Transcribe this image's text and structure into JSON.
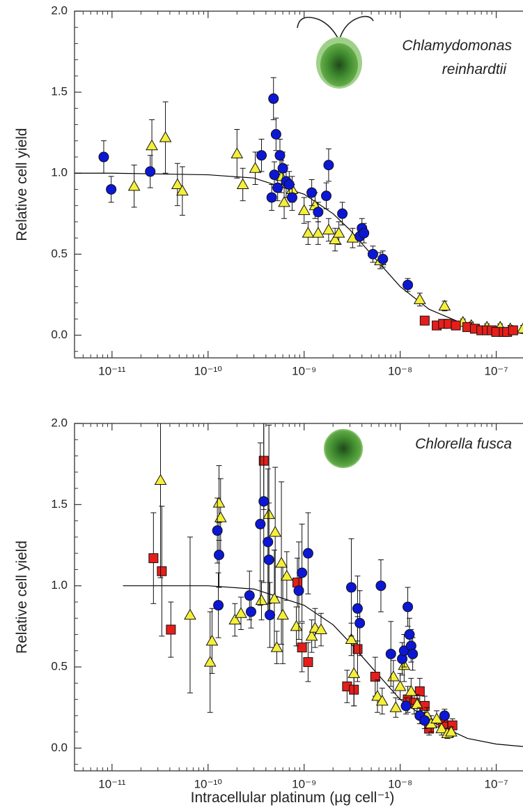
{
  "chart_data": [
    {
      "type": "scatter",
      "ylabel": "Relative cell yield",
      "log_x": true,
      "minor_ticks": true,
      "annotations": [
        "Chlamydomonas",
        "reinhardtii"
      ],
      "xlim": [
        4.07e-12,
        1.9e-07
      ],
      "ylim": [
        -0.14,
        2.0
      ],
      "xticks": [
        {
          "value": 1e-11,
          "label": "10⁻¹¹"
        },
        {
          "value": 1e-10,
          "label": "10⁻¹⁰"
        },
        {
          "value": 1e-09,
          "label": "10⁻⁹"
        },
        {
          "value": 1e-08,
          "label": "10⁻⁸"
        },
        {
          "value": 1e-07,
          "label": "10⁻⁷"
        }
      ],
      "yticks": [
        {
          "value": 0,
          "label": "0.0"
        },
        0.5,
        {
          "value": 1,
          "label": "1.0"
        },
        1.5,
        {
          "value": 2,
          "label": "2.0"
        }
      ],
      "series": [
        {
          "marker": "line",
          "color": "#000000",
          "x": [
            4.07e-12,
            1e-11,
            1e-10,
            3e-10,
            1e-09,
            2e-09,
            3e-09,
            5e-09,
            1e-08,
            2e-08,
            5e-08,
            1e-07,
            1.9e-07
          ],
          "values": [
            1.0,
            1.0,
            0.99,
            0.97,
            0.87,
            0.75,
            0.65,
            0.5,
            0.3,
            0.16,
            0.06,
            0.03,
            0.01
          ]
        },
        {
          "marker": "triangle",
          "color": "#f5ef3a",
          "x": [
            1.7e-11,
            2.6e-11,
            3.6e-11,
            4.8e-11,
            5.4e-11,
            2e-10,
            2.3e-10,
            3.1e-10,
            5.8e-10,
            6.2e-10,
            7.5e-10,
            1e-09,
            1.1e-09,
            1.3e-09,
            1.4e-09,
            1.8e-09,
            2.1e-09,
            2.3e-09,
            3.2e-09,
            6.2e-09,
            1.6e-08,
            2.9e-08,
            4.5e-08,
            5.5e-08,
            8e-08,
            1.1e-07,
            1.4e-07,
            1.9e-07
          ],
          "values": [
            0.92,
            1.17,
            1.22,
            0.93,
            0.89,
            1.12,
            0.93,
            1.03,
            0.98,
            0.82,
            0.9,
            0.77,
            0.63,
            0.8,
            0.63,
            0.65,
            0.59,
            0.63,
            0.6,
            0.46,
            0.22,
            0.18,
            0.08,
            0.06,
            0.05,
            0.05,
            0.04,
            0.04
          ],
          "errors": [
            0.13,
            0.16,
            0.22,
            0.13,
            0.15,
            0.15,
            0.1,
            0.1,
            0.1,
            0.1,
            0.08,
            0.08,
            0.07,
            0.08,
            0.07,
            0.07,
            0.07,
            0.07,
            0.06,
            0.05,
            0.04,
            0.03,
            0.02,
            0.02,
            0.02,
            0.02,
            0.02,
            0.02
          ]
        },
        {
          "marker": "circle",
          "color": "#0c17d6",
          "x": [
            8.2e-12,
            9.8e-12,
            2.5e-11,
            3.6e-10,
            4.8e-10,
            4.6e-10,
            4.9e-10,
            5.1e-10,
            5.3e-10,
            5.6e-10,
            6e-10,
            6.5e-10,
            7e-10,
            7.5e-10,
            1.2e-09,
            1.4e-09,
            1.7e-09,
            1.8e-09,
            2.5e-09,
            3.8e-09,
            4e-09,
            4.2e-09,
            5.2e-09,
            6.6e-09,
            1.2e-08
          ],
          "values": [
            1.1,
            0.9,
            1.01,
            1.11,
            1.46,
            0.85,
            0.99,
            1.24,
            0.91,
            1.11,
            1.03,
            0.95,
            0.93,
            0.85,
            0.88,
            0.76,
            0.86,
            1.05,
            0.75,
            0.61,
            0.66,
            0.63,
            0.5,
            0.47,
            0.31
          ],
          "errors": [
            0.1,
            0.08,
            0.1,
            0.1,
            0.13,
            0.08,
            0.08,
            0.1,
            0.08,
            0.1,
            0.1,
            0.1,
            0.08,
            0.08,
            0.08,
            0.06,
            0.08,
            0.1,
            0.07,
            0.06,
            0.06,
            0.06,
            0.05,
            0.05,
            0.04
          ]
        },
        {
          "marker": "square",
          "color": "#e61e1a",
          "x": [
            1.8e-08,
            2.4e-08,
            2.8e-08,
            3.2e-08,
            3.8e-08,
            5e-08,
            6e-08,
            7e-08,
            8e-08,
            9e-08,
            1e-07,
            1.2e-07,
            1.3e-07,
            1.5e-07
          ],
          "values": [
            0.09,
            0.06,
            0.07,
            0.07,
            0.06,
            0.05,
            0.04,
            0.03,
            0.03,
            0.03,
            0.02,
            0.02,
            0.02,
            0.03
          ],
          "errors": [
            0.02,
            0.02,
            0.02,
            0.02,
            0.02,
            0.01,
            0.01,
            0.01,
            0.01,
            0.01,
            0.01,
            0.01,
            0.01,
            0.01
          ]
        }
      ]
    },
    {
      "type": "scatter",
      "ylabel": "Relative cell yield",
      "xlabel": "Intracellular platinum (µg cell⁻¹)",
      "log_x": true,
      "minor_ticks": true,
      "annotations": [
        "Chlorella fusca"
      ],
      "xlim": [
        4.07e-12,
        1.9e-07
      ],
      "ylim": [
        -0.14,
        2.0
      ],
      "xticks": [
        {
          "value": 1e-11,
          "label": "10⁻¹¹"
        },
        {
          "value": 1e-10,
          "label": "10⁻¹⁰"
        },
        {
          "value": 1e-09,
          "label": "10⁻⁹"
        },
        {
          "value": 1e-08,
          "label": "10⁻⁸"
        },
        {
          "value": 1e-07,
          "label": "10⁻⁷"
        }
      ],
      "yticks": [
        {
          "value": 0,
          "label": "0.0"
        },
        0.5,
        {
          "value": 1,
          "label": "1.0"
        },
        1.5,
        {
          "value": 2,
          "label": "2.0"
        }
      ],
      "series": [
        {
          "marker": "line",
          "color": "#000000",
          "x": [
            1.3e-11,
            1e-10,
            3e-10,
            1e-09,
            2e-09,
            3e-09,
            5e-09,
            1e-08,
            2e-08,
            5e-08,
            1e-07,
            1.9e-07
          ],
          "values": [
            1.0,
            1.0,
            0.98,
            0.88,
            0.76,
            0.65,
            0.5,
            0.3,
            0.17,
            0.06,
            0.025,
            0.01
          ]
        },
        {
          "marker": "square",
          "color": "#e61e1a",
          "x": [
            2.7e-11,
            3.3e-11,
            4.1e-11,
            3.8e-10,
            8.5e-10,
            9.5e-10,
            1.1e-09,
            2.8e-09,
            3.3e-09,
            3.6e-09,
            5.5e-09,
            1.2e-08,
            1.4e-08,
            1.6e-08,
            1.8e-08,
            2e-08,
            2.8e-08,
            3.5e-08
          ],
          "values": [
            1.17,
            1.09,
            0.73,
            1.77,
            1.02,
            0.62,
            0.53,
            0.38,
            0.36,
            0.61,
            0.44,
            0.3,
            0.28,
            0.35,
            0.26,
            0.12,
            0.15,
            0.14
          ],
          "errors": [
            0.28,
            0.4,
            0.17,
            0.3,
            0.15,
            0.15,
            0.12,
            0.1,
            0.1,
            0.2,
            0.12,
            0.08,
            0.07,
            0.08,
            0.06,
            0.04,
            0.04,
            0.04
          ]
        },
        {
          "marker": "triangle",
          "color": "#f5ef3a",
          "x": [
            3.2e-11,
            6.5e-11,
            1.05e-10,
            1.1e-10,
            1.3e-10,
            1.35e-10,
            1.9e-10,
            2.2e-10,
            3.6e-10,
            4.3e-10,
            5e-10,
            5.2e-10,
            4.9e-10,
            5.8e-10,
            6e-10,
            6.6e-10,
            8.3e-10,
            1.2e-09,
            1.3e-09,
            1.5e-09,
            3.1e-09,
            3.3e-09,
            5.8e-09,
            6.5e-09,
            8.5e-09,
            9e-09,
            1e-08,
            1.1e-08,
            1.3e-08,
            1.5e-08,
            1.9e-08,
            2.1e-08,
            2.4e-08,
            2.7e-08,
            3.1e-08,
            3.4e-08
          ],
          "values": [
            1.65,
            0.82,
            0.53,
            0.66,
            1.51,
            1.42,
            0.79,
            0.83,
            0.91,
            1.44,
            1.33,
            0.62,
            0.92,
            1.14,
            0.82,
            1.06,
            0.75,
            0.69,
            0.74,
            0.73,
            0.67,
            0.46,
            0.32,
            0.29,
            0.44,
            0.25,
            0.38,
            0.51,
            0.35,
            0.27,
            0.2,
            0.15,
            0.18,
            0.12,
            0.09,
            0.1
          ],
          "errors": [
            0.6,
            0.48,
            0.31,
            0.2,
            0.23,
            0.24,
            0.1,
            0.1,
            0.12,
            0.55,
            0.4,
            0.1,
            0.3,
            0.5,
            0.3,
            0.15,
            0.12,
            0.1,
            0.12,
            0.1,
            0.1,
            0.2,
            0.1,
            0.08,
            0.1,
            0.06,
            0.08,
            0.1,
            0.08,
            0.06,
            0.05,
            0.05,
            0.05,
            0.04,
            0.03,
            0.03
          ]
        },
        {
          "marker": "circle",
          "color": "#0c17d6",
          "x": [
            1.25e-10,
            1.3e-10,
            1.28e-10,
            2.7e-10,
            2.8e-10,
            3.5e-10,
            3.8e-10,
            4.2e-10,
            4.3e-10,
            4.4e-10,
            8.8e-10,
            9.5e-10,
            1.1e-09,
            3.1e-09,
            3.6e-09,
            3.8e-09,
            6.3e-09,
            8e-09,
            1.05e-08,
            1.1e-08,
            1.2e-08,
            1.25e-08,
            1.3e-08,
            1.35e-08,
            1.15e-08,
            1.6e-08,
            1.8e-08,
            2.9e-08
          ],
          "values": [
            1.34,
            1.19,
            0.88,
            0.94,
            0.84,
            1.38,
            1.52,
            1.27,
            1.16,
            0.82,
            0.97,
            1.08,
            1.2,
            0.99,
            0.86,
            0.77,
            1.0,
            0.58,
            0.55,
            0.6,
            0.87,
            0.7,
            0.63,
            0.58,
            0.26,
            0.2,
            0.17,
            0.2
          ],
          "errors": [
            0.2,
            0.2,
            0.2,
            0.15,
            0.1,
            0.5,
            0.5,
            0.45,
            0.35,
            0.2,
            0.3,
            0.3,
            0.25,
            0.3,
            0.2,
            0.2,
            0.16,
            0.2,
            0.1,
            0.1,
            0.12,
            0.1,
            0.1,
            0.1,
            0.05,
            0.05,
            0.05,
            0.04
          ]
        }
      ]
    }
  ]
}
